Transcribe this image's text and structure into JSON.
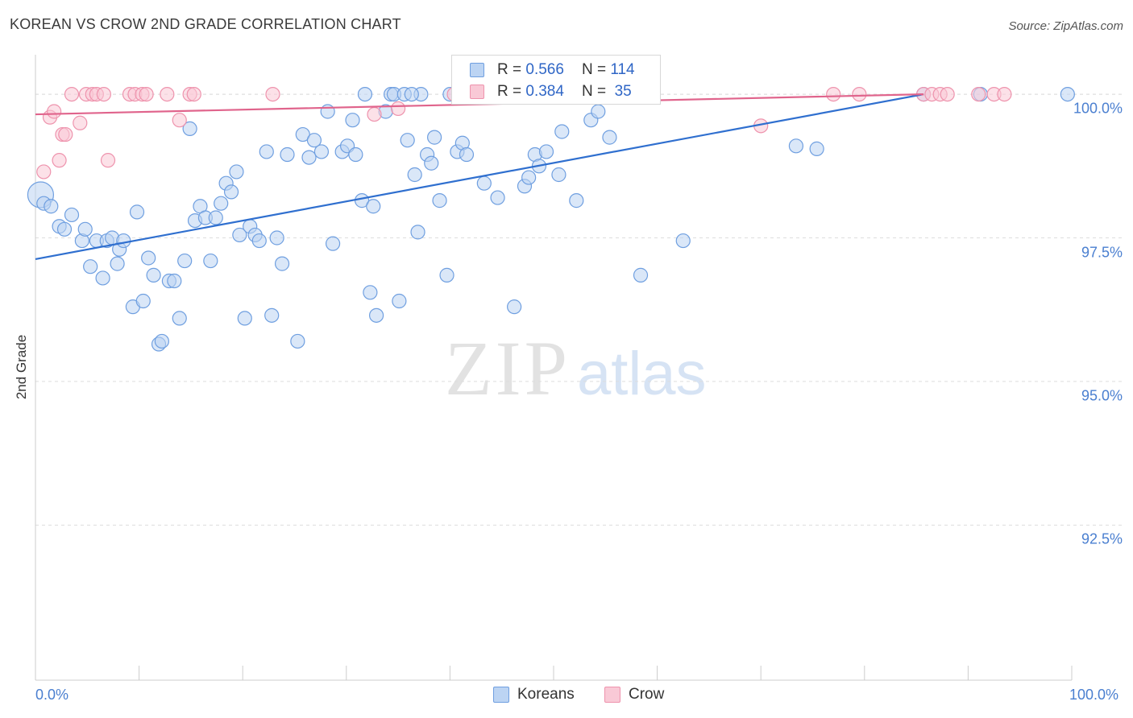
{
  "title": "KOREAN VS CROW 2ND GRADE CORRELATION CHART",
  "source": "Source: ZipAtlas.com",
  "watermark": {
    "zip": "ZIP",
    "atlas": "atlas"
  },
  "legend": {
    "r_label": "R =",
    "n_label": "N =",
    "series": [
      {
        "name": "Koreans",
        "r": "0.566",
        "n": "114"
      },
      {
        "name": "Crow",
        "r": "0.384",
        "n": "35"
      }
    ]
  },
  "colors": {
    "koreans_fill": "#bcd4f3",
    "koreans_stroke": "#6f9fe0",
    "koreans_line": "#2f6fcf",
    "crow_fill": "#f9c9d6",
    "crow_stroke": "#ee93ad",
    "crow_line": "#e0648c",
    "tick_text": "#4a7fd0",
    "grid": "#dddddd"
  },
  "chart_data": {
    "type": "scatter",
    "title": "KOREAN VS CROW 2ND GRADE CORRELATION CHART",
    "ylabel": "2nd Grade",
    "xlabel": "",
    "xlim": [
      0,
      100
    ],
    "ylim": [
      89.8,
      100.8
    ],
    "y_ticks": [
      {
        "value": 100.0,
        "label": "100.0%"
      },
      {
        "value": 97.5,
        "label": "97.5%"
      },
      {
        "value": 95.0,
        "label": "95.0%"
      },
      {
        "value": 92.5,
        "label": "92.5%"
      }
    ],
    "x_tick_labels": {
      "left": "0.0%",
      "right": "100.0%"
    },
    "grid": true,
    "series": [
      {
        "name": "Koreans",
        "trend": {
          "x": [
            0,
            85.7
          ],
          "y": [
            97.13,
            100.0
          ]
        },
        "points": [
          [
            0.5,
            98.25
          ],
          [
            0.8,
            98.1
          ],
          [
            1.5,
            98.05
          ],
          [
            2.3,
            97.7
          ],
          [
            2.8,
            97.65
          ],
          [
            3.5,
            97.9
          ],
          [
            4.5,
            97.45
          ],
          [
            4.8,
            97.65
          ],
          [
            5.3,
            97.0
          ],
          [
            5.9,
            97.45
          ],
          [
            6.5,
            96.8
          ],
          [
            6.9,
            97.45
          ],
          [
            7.4,
            97.5
          ],
          [
            7.9,
            97.05
          ],
          [
            8.1,
            97.3
          ],
          [
            8.5,
            97.45
          ],
          [
            9.4,
            96.3
          ],
          [
            9.8,
            97.95
          ],
          [
            10.4,
            96.4
          ],
          [
            10.9,
            97.15
          ],
          [
            11.4,
            96.85
          ],
          [
            11.9,
            95.65
          ],
          [
            12.2,
            95.7
          ],
          [
            12.9,
            96.75
          ],
          [
            13.4,
            96.75
          ],
          [
            13.9,
            96.1
          ],
          [
            14.4,
            97.1
          ],
          [
            14.9,
            99.4
          ],
          [
            15.4,
            97.8
          ],
          [
            15.9,
            98.05
          ],
          [
            16.4,
            97.85
          ],
          [
            16.9,
            97.1
          ],
          [
            17.4,
            97.85
          ],
          [
            17.9,
            98.1
          ],
          [
            18.4,
            98.45
          ],
          [
            18.9,
            98.3
          ],
          [
            19.4,
            98.65
          ],
          [
            19.7,
            97.55
          ],
          [
            20.2,
            96.1
          ],
          [
            20.7,
            97.7
          ],
          [
            21.2,
            97.55
          ],
          [
            21.6,
            97.45
          ],
          [
            22.3,
            99.0
          ],
          [
            22.8,
            96.15
          ],
          [
            23.3,
            97.5
          ],
          [
            23.8,
            97.05
          ],
          [
            24.3,
            98.95
          ],
          [
            25.3,
            95.7
          ],
          [
            25.8,
            99.3
          ],
          [
            26.4,
            98.9
          ],
          [
            26.9,
            99.2
          ],
          [
            27.6,
            99.0
          ],
          [
            28.2,
            99.7
          ],
          [
            28.7,
            97.4
          ],
          [
            29.6,
            99.0
          ],
          [
            30.1,
            99.1
          ],
          [
            30.6,
            99.55
          ],
          [
            30.9,
            98.95
          ],
          [
            31.5,
            98.15
          ],
          [
            31.8,
            100.0
          ],
          [
            32.3,
            96.55
          ],
          [
            32.6,
            98.05
          ],
          [
            32.9,
            96.15
          ],
          [
            33.8,
            99.7
          ],
          [
            34.3,
            100.0
          ],
          [
            34.6,
            100.0
          ],
          [
            35.1,
            96.4
          ],
          [
            35.6,
            100.0
          ],
          [
            35.9,
            99.2
          ],
          [
            36.6,
            98.6
          ],
          [
            36.9,
            97.6
          ],
          [
            37.8,
            98.95
          ],
          [
            38.2,
            98.8
          ],
          [
            38.5,
            99.25
          ],
          [
            39.0,
            98.15
          ],
          [
            39.7,
            96.85
          ],
          [
            40.0,
            100.0
          ],
          [
            40.7,
            99.0
          ],
          [
            41.2,
            99.15
          ],
          [
            41.6,
            98.95
          ],
          [
            43.3,
            98.45
          ],
          [
            44.6,
            98.2
          ],
          [
            46.2,
            96.3
          ],
          [
            47.2,
            98.4
          ],
          [
            47.6,
            98.55
          ],
          [
            48.2,
            98.95
          ],
          [
            48.6,
            98.75
          ],
          [
            49.3,
            99.0
          ],
          [
            49.9,
            100.0
          ],
          [
            50.5,
            98.6
          ],
          [
            50.8,
            99.35
          ],
          [
            51.5,
            100.0
          ],
          [
            52.2,
            98.15
          ],
          [
            53.6,
            99.55
          ],
          [
            54.3,
            99.7
          ],
          [
            55.4,
            99.25
          ],
          [
            55.7,
            100.0
          ],
          [
            58.4,
            96.85
          ],
          [
            62.5,
            97.45
          ],
          [
            73.4,
            99.1
          ],
          [
            75.4,
            99.05
          ],
          [
            85.7,
            100.0
          ],
          [
            91.2,
            100.0
          ],
          [
            99.6,
            100.0
          ],
          [
            41.5,
            100.0
          ],
          [
            42.6,
            100.0
          ],
          [
            43.6,
            100.0
          ],
          [
            48.1,
            100.0
          ],
          [
            49.0,
            100.0
          ],
          [
            53.9,
            100.0
          ],
          [
            45.0,
            100.0
          ],
          [
            46.8,
            100.0
          ],
          [
            37.2,
            100.0
          ],
          [
            36.3,
            100.0
          ]
        ]
      },
      {
        "name": "Crow",
        "trend": {
          "x": [
            0,
            85.7
          ],
          "y": [
            99.65,
            100.0
          ]
        },
        "points": [
          [
            0.8,
            98.65
          ],
          [
            1.4,
            99.6
          ],
          [
            1.8,
            99.7
          ],
          [
            2.3,
            98.85
          ],
          [
            2.6,
            99.3
          ],
          [
            2.9,
            99.3
          ],
          [
            3.5,
            100.0
          ],
          [
            4.3,
            99.5
          ],
          [
            4.9,
            100.0
          ],
          [
            5.5,
            100.0
          ],
          [
            5.9,
            100.0
          ],
          [
            6.6,
            100.0
          ],
          [
            7.0,
            98.85
          ],
          [
            9.1,
            100.0
          ],
          [
            9.6,
            100.0
          ],
          [
            10.3,
            100.0
          ],
          [
            10.7,
            100.0
          ],
          [
            12.7,
            100.0
          ],
          [
            13.9,
            99.55
          ],
          [
            14.9,
            100.0
          ],
          [
            15.3,
            100.0
          ],
          [
            22.9,
            100.0
          ],
          [
            32.7,
            99.65
          ],
          [
            35.0,
            99.75
          ],
          [
            40.4,
            100.0
          ],
          [
            70.0,
            99.45
          ],
          [
            77.0,
            100.0
          ],
          [
            79.5,
            100.0
          ],
          [
            85.7,
            100.0
          ],
          [
            86.5,
            100.0
          ],
          [
            87.3,
            100.0
          ],
          [
            88.0,
            100.0
          ],
          [
            91.0,
            100.0
          ],
          [
            92.5,
            100.0
          ],
          [
            93.5,
            100.0
          ]
        ]
      }
    ]
  }
}
